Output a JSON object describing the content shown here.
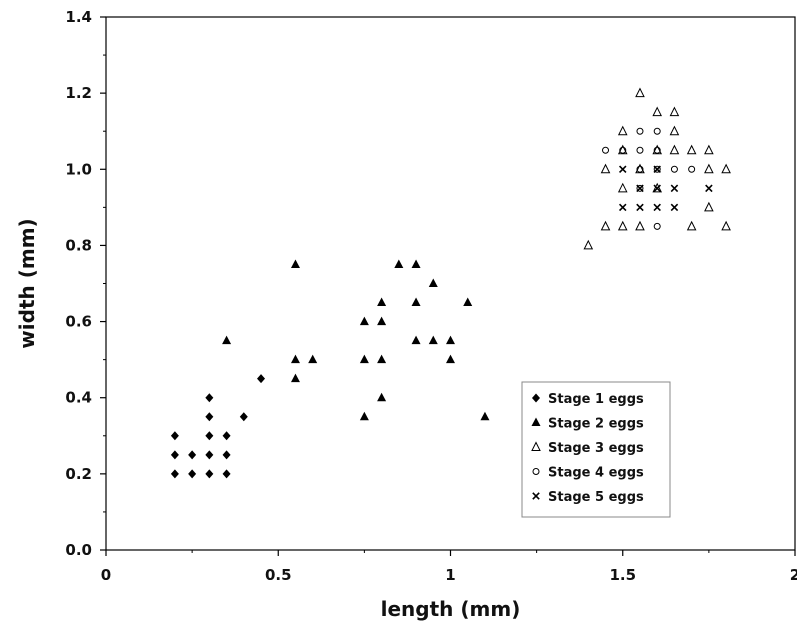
{
  "chart_data": {
    "type": "scatter",
    "xlabel": "length (mm)",
    "ylabel": "width (mm)",
    "xlim": [
      0,
      2
    ],
    "ylim": [
      0,
      1.4
    ],
    "x_ticks": [
      "0",
      "0.5",
      "1",
      "1.5",
      "2"
    ],
    "y_ticks": [
      "0.0",
      "0.2",
      "0.4",
      "0.6",
      "0.8",
      "1.0",
      "1.2",
      "1.4"
    ],
    "grid": false,
    "legend_position": "bottom-right",
    "series": [
      {
        "name": "Stage 1 eggs",
        "marker": "diamond",
        "points": [
          [
            0.2,
            0.3
          ],
          [
            0.2,
            0.25
          ],
          [
            0.2,
            0.2
          ],
          [
            0.25,
            0.25
          ],
          [
            0.25,
            0.2
          ],
          [
            0.3,
            0.4
          ],
          [
            0.3,
            0.35
          ],
          [
            0.3,
            0.3
          ],
          [
            0.3,
            0.25
          ],
          [
            0.3,
            0.2
          ],
          [
            0.35,
            0.3
          ],
          [
            0.35,
            0.25
          ],
          [
            0.35,
            0.2
          ],
          [
            0.4,
            0.35
          ],
          [
            0.45,
            0.45
          ]
        ]
      },
      {
        "name": "Stage 2 eggs",
        "marker": "triangle-filled",
        "points": [
          [
            0.35,
            0.55
          ],
          [
            0.55,
            0.75
          ],
          [
            0.55,
            0.5
          ],
          [
            0.55,
            0.45
          ],
          [
            0.6,
            0.5
          ],
          [
            0.75,
            0.6
          ],
          [
            0.75,
            0.5
          ],
          [
            0.75,
            0.35
          ],
          [
            0.8,
            0.65
          ],
          [
            0.8,
            0.6
          ],
          [
            0.8,
            0.5
          ],
          [
            0.8,
            0.4
          ],
          [
            0.85,
            0.75
          ],
          [
            0.9,
            0.75
          ],
          [
            0.9,
            0.65
          ],
          [
            0.9,
            0.55
          ],
          [
            0.95,
            0.7
          ],
          [
            0.95,
            0.55
          ],
          [
            1.0,
            0.55
          ],
          [
            1.0,
            0.5
          ],
          [
            1.05,
            0.65
          ],
          [
            1.1,
            0.35
          ]
        ]
      },
      {
        "name": "Stage 3 eggs",
        "marker": "triangle-open",
        "points": [
          [
            1.4,
            0.8
          ],
          [
            1.45,
            1.0
          ],
          [
            1.45,
            0.85
          ],
          [
            1.5,
            1.05
          ],
          [
            1.5,
            0.95
          ],
          [
            1.5,
            0.85
          ],
          [
            1.55,
            1.2
          ],
          [
            1.55,
            1.0
          ],
          [
            1.6,
            1.15
          ],
          [
            1.6,
            1.05
          ],
          [
            1.65,
            1.15
          ],
          [
            1.65,
            1.05
          ],
          [
            1.7,
            1.05
          ],
          [
            1.7,
            0.85
          ],
          [
            1.75,
            1.05
          ],
          [
            1.75,
            1.0
          ],
          [
            1.75,
            0.9
          ],
          [
            1.8,
            1.0
          ],
          [
            1.8,
            0.85
          ],
          [
            1.65,
            1.1
          ],
          [
            1.5,
            1.1
          ],
          [
            1.6,
            0.95
          ],
          [
            1.55,
            0.85
          ]
        ]
      },
      {
        "name": "Stage 4 eggs",
        "marker": "circle-open",
        "points": [
          [
            1.45,
            1.05
          ],
          [
            1.5,
            1.05
          ],
          [
            1.55,
            1.1
          ],
          [
            1.55,
            1.05
          ],
          [
            1.6,
            1.1
          ],
          [
            1.6,
            1.05
          ],
          [
            1.55,
            1.0
          ],
          [
            1.6,
            1.0
          ],
          [
            1.65,
            1.0
          ],
          [
            1.7,
            1.0
          ],
          [
            1.6,
            0.85
          ],
          [
            1.55,
            0.95
          ]
        ]
      },
      {
        "name": "Stage 5 eggs",
        "marker": "x",
        "points": [
          [
            1.5,
            1.0
          ],
          [
            1.6,
            1.0
          ],
          [
            1.55,
            0.95
          ],
          [
            1.6,
            0.95
          ],
          [
            1.65,
            0.95
          ],
          [
            1.75,
            0.95
          ],
          [
            1.5,
            0.9
          ],
          [
            1.55,
            0.9
          ],
          [
            1.6,
            0.9
          ],
          [
            1.65,
            0.9
          ]
        ]
      }
    ]
  }
}
